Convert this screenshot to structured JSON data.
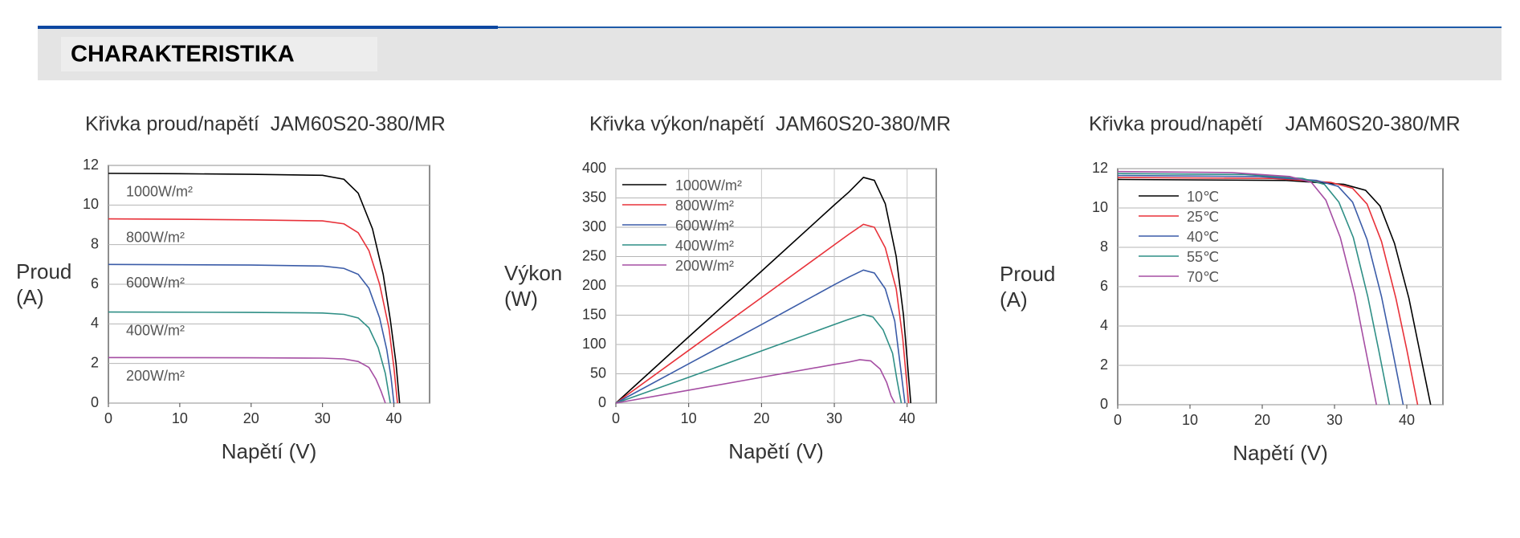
{
  "header": {
    "title": "CHARAKTERISTIKA"
  },
  "chart_data": [
    {
      "type": "line",
      "title": "Křivka proud/napětí  JAM60S20-380/MR",
      "xlabel": "Napětí (V)",
      "ylabel": [
        "Proud",
        "(A)"
      ],
      "xlim": [
        0,
        45
      ],
      "ylim": [
        0,
        12
      ],
      "xticks": [
        0,
        10,
        20,
        30,
        40
      ],
      "yticks": [
        0,
        2,
        4,
        6,
        8,
        10,
        12
      ],
      "grid": true,
      "legend": "inline",
      "series": [
        {
          "name": "1000W/m²",
          "color": "#000000",
          "x": [
            0,
            10,
            20,
            30,
            33,
            35,
            37,
            38.5,
            39.5,
            40.3,
            40.8
          ],
          "values": [
            11.6,
            11.58,
            11.55,
            11.5,
            11.3,
            10.6,
            8.8,
            6.5,
            4.2,
            2,
            0
          ]
        },
        {
          "name": "800W/m²",
          "color": "#e8323a",
          "x": [
            0,
            10,
            20,
            30,
            33,
            35,
            36.5,
            38,
            39.3,
            40,
            40.5
          ],
          "values": [
            9.3,
            9.28,
            9.25,
            9.2,
            9.05,
            8.6,
            7.7,
            6,
            3.8,
            1.8,
            0
          ]
        },
        {
          "name": "600W/m²",
          "color": "#3b5ca8",
          "x": [
            0,
            20,
            30,
            33,
            35,
            36.5,
            38,
            39,
            39.6,
            40
          ],
          "values": [
            7.0,
            6.97,
            6.92,
            6.8,
            6.5,
            5.8,
            4.3,
            2.7,
            1.3,
            0
          ]
        },
        {
          "name": "400W/m²",
          "color": "#2f8f86",
          "x": [
            0,
            20,
            30,
            33,
            35,
            36.5,
            37.8,
            38.8,
            39.5
          ],
          "values": [
            4.6,
            4.58,
            4.55,
            4.48,
            4.3,
            3.8,
            2.8,
            1.5,
            0
          ]
        },
        {
          "name": "200W/m²",
          "color": "#a54ea3",
          "x": [
            0,
            20,
            30,
            33,
            35,
            36.5,
            37.5,
            38.2,
            38.8
          ],
          "values": [
            2.3,
            2.29,
            2.27,
            2.23,
            2.1,
            1.8,
            1.2,
            0.6,
            0
          ]
        }
      ]
    },
    {
      "type": "line",
      "title": "Křivka výkon/napětí  JAM60S20-380/MR",
      "xlabel": "Napětí (V)",
      "ylabel": [
        "Výkon",
        "(W)"
      ],
      "xlim": [
        0,
        44
      ],
      "ylim": [
        0,
        400
      ],
      "xticks": [
        0,
        10,
        20,
        30,
        40
      ],
      "yticks": [
        0,
        50,
        100,
        150,
        200,
        250,
        300,
        350,
        400
      ],
      "grid": true,
      "legend": "upper left",
      "series": [
        {
          "name": "1000W/m²",
          "color": "#000000",
          "x": [
            0,
            10,
            20,
            30,
            32,
            34,
            35.5,
            37,
            38.5,
            39.5,
            40.5
          ],
          "values": [
            0,
            113,
            225,
            338,
            360,
            385,
            380,
            340,
            250,
            150,
            0
          ]
        },
        {
          "name": "800W/m²",
          "color": "#e8323a",
          "x": [
            0,
            10,
            20,
            30,
            32,
            34,
            35.5,
            37,
            38.5,
            39.4,
            40.2
          ],
          "values": [
            0,
            90,
            180,
            270,
            288,
            305,
            300,
            265,
            195,
            110,
            0
          ]
        },
        {
          "name": "600W/m²",
          "color": "#3b5ca8",
          "x": [
            0,
            10,
            20,
            30,
            32,
            34,
            35.5,
            37,
            38.3,
            39,
            39.7
          ],
          "values": [
            0,
            67,
            134,
            202,
            215,
            227,
            222,
            195,
            140,
            70,
            0
          ]
        },
        {
          "name": "400W/m²",
          "color": "#2f8f86",
          "x": [
            0,
            10,
            20,
            30,
            32,
            34,
            35.3,
            36.7,
            38,
            38.6,
            39.2
          ],
          "values": [
            0,
            44,
            89,
            134,
            143,
            151,
            147,
            125,
            85,
            40,
            0
          ]
        },
        {
          "name": "200W/m²",
          "color": "#a54ea3",
          "x": [
            0,
            10,
            20,
            30,
            32,
            33.5,
            35,
            36.3,
            37.2,
            37.8,
            38.3
          ],
          "values": [
            0,
            22,
            44,
            66,
            70,
            74,
            72,
            58,
            35,
            12,
            0
          ]
        }
      ]
    },
    {
      "type": "line",
      "title": "Křivka proud/napětí    JAM60S20-380/MR",
      "xlabel": "Napětí (V)",
      "ylabel": [
        "Proud",
        "(A)"
      ],
      "xlim": [
        0,
        45
      ],
      "ylim": [
        0,
        12
      ],
      "xticks": [
        0,
        10,
        20,
        30,
        40
      ],
      "yticks": [
        0,
        2,
        4,
        6,
        8,
        10,
        12
      ],
      "grid": true,
      "legend": "upper left",
      "series": [
        {
          "name": "10℃",
          "color": "#000000",
          "x": [
            0,
            23.3,
            31.3,
            34.3,
            36.3,
            38.3,
            40.3,
            41.8,
            43.3
          ],
          "values": [
            11.45,
            11.4,
            11.2,
            10.9,
            10.1,
            8.2,
            5.4,
            2.7,
            0
          ]
        },
        {
          "name": "25℃",
          "color": "#e8323a",
          "x": [
            0,
            21.5,
            29.5,
            32.5,
            34.5,
            36.5,
            38.5,
            40,
            41.5
          ],
          "values": [
            11.55,
            11.5,
            11.3,
            11,
            10.2,
            8.3,
            5.4,
            2.8,
            0
          ]
        },
        {
          "name": "40℃",
          "color": "#3b5ca8",
          "x": [
            0,
            19.5,
            27.5,
            30.5,
            32.5,
            34.5,
            36.5,
            38,
            39.5
          ],
          "values": [
            11.65,
            11.6,
            11.4,
            11.1,
            10.3,
            8.4,
            5.5,
            2.8,
            0
          ]
        },
        {
          "name": "55℃",
          "color": "#2f8f86",
          "x": [
            0,
            17.6,
            25.6,
            28.6,
            30.6,
            32.6,
            34.6,
            36.1,
            37.6
          ],
          "values": [
            11.75,
            11.7,
            11.5,
            11.2,
            10.3,
            8.5,
            5.5,
            2.8,
            0
          ]
        },
        {
          "name": "70℃",
          "color": "#a54ea3",
          "x": [
            0,
            15.8,
            23.8,
            26.8,
            28.8,
            30.8,
            32.8,
            34.3,
            35.8
          ],
          "values": [
            11.85,
            11.8,
            11.6,
            11.3,
            10.4,
            8.5,
            5.6,
            2.8,
            0
          ]
        }
      ]
    }
  ]
}
